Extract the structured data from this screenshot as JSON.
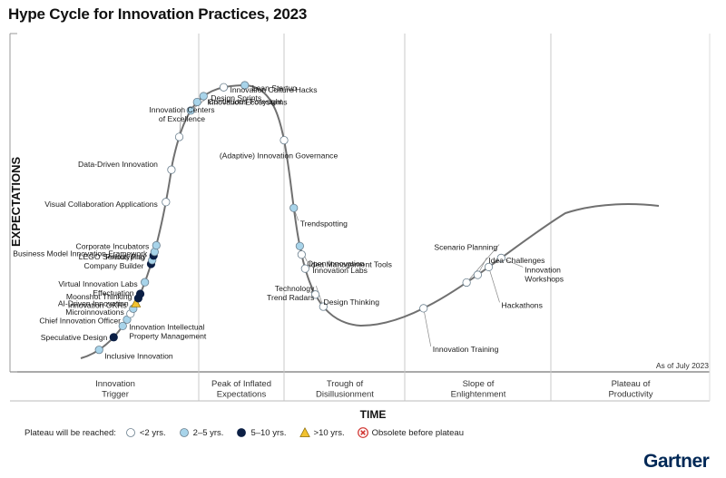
{
  "title": "Hype Cycle for Innovation Practices, 2023",
  "brand": "Gartner",
  "colors": {
    "lt2": "#ffffff",
    "y2to5": "#a8d4ea",
    "y5to10": "#0b1f45",
    "gt10": "#f2c230",
    "obsolete": "#d0312d",
    "curve": "#707070"
  },
  "chart_data": {
    "type": "line",
    "title": "Hype Cycle for Innovation Practices, 2023",
    "xlabel": "TIME",
    "ylabel": "EXPECTATIONS",
    "note": "As of July 2023",
    "phases": [
      "Innovation Trigger",
      "Peak of Inflated Expectations",
      "Trough of Disillusionment",
      "Slope of Enlightenment",
      "Plateau of Productivity"
    ],
    "legend": {
      "lead": "Plateau will be reached:",
      "items": [
        {
          "key": "lt2",
          "label": "<2 yrs."
        },
        {
          "key": "y2to5",
          "label": "2–5 yrs."
        },
        {
          "key": "y5to10",
          "label": "5–10 yrs."
        },
        {
          "key": "gt10",
          "label": ">10 yrs."
        },
        {
          "key": "obsolete",
          "label": "Obsolete before plateau"
        }
      ]
    },
    "points": [
      {
        "name": "Inclusive Innovation",
        "t": 0.021,
        "plateau": "y2to5"
      },
      {
        "name": "Speculative Design",
        "t": 0.041,
        "plateau": "y5to10"
      },
      {
        "name": "Innovation Intellectual Property Management",
        "t": 0.056,
        "plateau": "y2to5"
      },
      {
        "name": "Chief Innovation Officer",
        "t": 0.064,
        "plateau": "y2to5"
      },
      {
        "name": "Microinnovations",
        "t": 0.071,
        "plateau": "lt2"
      },
      {
        "name": "Innovation OKRs",
        "t": 0.077,
        "plateau": "y2to5"
      },
      {
        "name": "AI-Driven Innovation",
        "t": 0.083,
        "plateau": "gt10"
      },
      {
        "name": "Moonshot Thinking",
        "t": 0.089,
        "plateau": "y5to10"
      },
      {
        "name": "Effectuation",
        "t": 0.094,
        "plateau": "y5to10"
      },
      {
        "name": "Virtual Innovation Labs",
        "t": 0.107,
        "plateau": "y2to5"
      },
      {
        "name": "Company Builder",
        "t": 0.127,
        "plateau": "y5to10"
      },
      {
        "name": "Pretotyping",
        "t": 0.131,
        "plateau": "y2to5"
      },
      {
        "name": "LEGO Serious Play",
        "t": 0.136,
        "plateau": "y5to10"
      },
      {
        "name": "Business Model Innovation Framework",
        "t": 0.14,
        "plateau": "y2to5"
      },
      {
        "name": "Corporate Incubators",
        "t": 0.147,
        "plateau": "y2to5"
      },
      {
        "name": "Visual Collaboration Applications",
        "t": 0.193,
        "plateau": "lt2"
      },
      {
        "name": "Data-Driven Innovation",
        "t": 0.227,
        "plateau": "lt2"
      },
      {
        "name": "Innovation Centers of Excellence",
        "t": 0.262,
        "plateau": "lt2"
      },
      {
        "name": "Continuous Foresight",
        "t": 0.292,
        "plateau": "y2to5"
      },
      {
        "name": "Innovation Ecosystems",
        "t": 0.303,
        "plateau": "y2to5"
      },
      {
        "name": "Design Sprints",
        "t": 0.312,
        "plateau": "y2to5"
      },
      {
        "name": "Innovation Culture Hacks",
        "t": 0.335,
        "plateau": "lt2"
      },
      {
        "name": "Lean Startup",
        "t": 0.357,
        "plateau": "y2to5"
      },
      {
        "name": "(Adaptive) Innovation Governance",
        "t": 0.433,
        "plateau": "lt2"
      },
      {
        "name": "Trendspotting",
        "t": 0.504,
        "plateau": "y2to5"
      },
      {
        "name": "Idea Management Tools",
        "t": 0.544,
        "plateau": "y2to5"
      },
      {
        "name": "Open Innovation",
        "t": 0.553,
        "plateau": "lt2"
      },
      {
        "name": "Innovation Labs",
        "t": 0.568,
        "plateau": "lt2"
      },
      {
        "name": "Design Thinking",
        "t": 0.597,
        "plateau": "lt2"
      },
      {
        "name": "Technology Trend Radars",
        "t": 0.612,
        "plateau": "lt2"
      },
      {
        "name": "Innovation Training",
        "t": 0.725,
        "plateau": "lt2"
      },
      {
        "name": "Scenario Planning",
        "t": 0.777,
        "plateau": "lt2"
      },
      {
        "name": "Idea Challenges",
        "t": 0.791,
        "plateau": "lt2"
      },
      {
        "name": "Hackathons",
        "t": 0.805,
        "plateau": "lt2"
      },
      {
        "name": "Innovation Workshops",
        "t": 0.821,
        "plateau": "lt2"
      }
    ]
  }
}
